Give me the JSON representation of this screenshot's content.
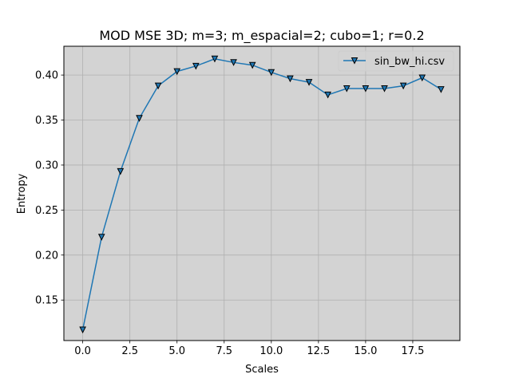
{
  "chart_data": {
    "type": "line",
    "title": "MOD MSE 3D; m=3; m_espacial=2; cubo=1; r=0.2",
    "xlabel": "Scales",
    "ylabel": "Entropy",
    "xlim": [
      -1,
      20
    ],
    "ylim": [
      0.105,
      0.432
    ],
    "x_ticks": [
      0.0,
      2.5,
      5.0,
      7.5,
      10.0,
      12.5,
      15.0,
      17.5
    ],
    "x_tick_labels": [
      "0.0",
      "2.5",
      "5.0",
      "7.5",
      "10.0",
      "12.5",
      "15.0",
      "17.5"
    ],
    "y_ticks": [
      0.15,
      0.2,
      0.25,
      0.3,
      0.35,
      0.4
    ],
    "y_tick_labels": [
      "0.15",
      "0.20",
      "0.25",
      "0.30",
      "0.35",
      "0.40"
    ],
    "grid": true,
    "legend_position": "top-right",
    "plot_background": "#d3d3d3",
    "series": [
      {
        "name": "sin_bw_hi.csv",
        "color": "#1f77b4",
        "marker": "triangle-down",
        "x": [
          0,
          1,
          2,
          3,
          4,
          5,
          6,
          7,
          8,
          9,
          10,
          11,
          12,
          13,
          14,
          15,
          16,
          17,
          18,
          19
        ],
        "values": [
          0.117,
          0.22,
          0.293,
          0.352,
          0.388,
          0.404,
          0.41,
          0.418,
          0.414,
          0.411,
          0.403,
          0.396,
          0.392,
          0.378,
          0.385,
          0.385,
          0.385,
          0.388,
          0.397,
          0.384
        ]
      }
    ]
  }
}
